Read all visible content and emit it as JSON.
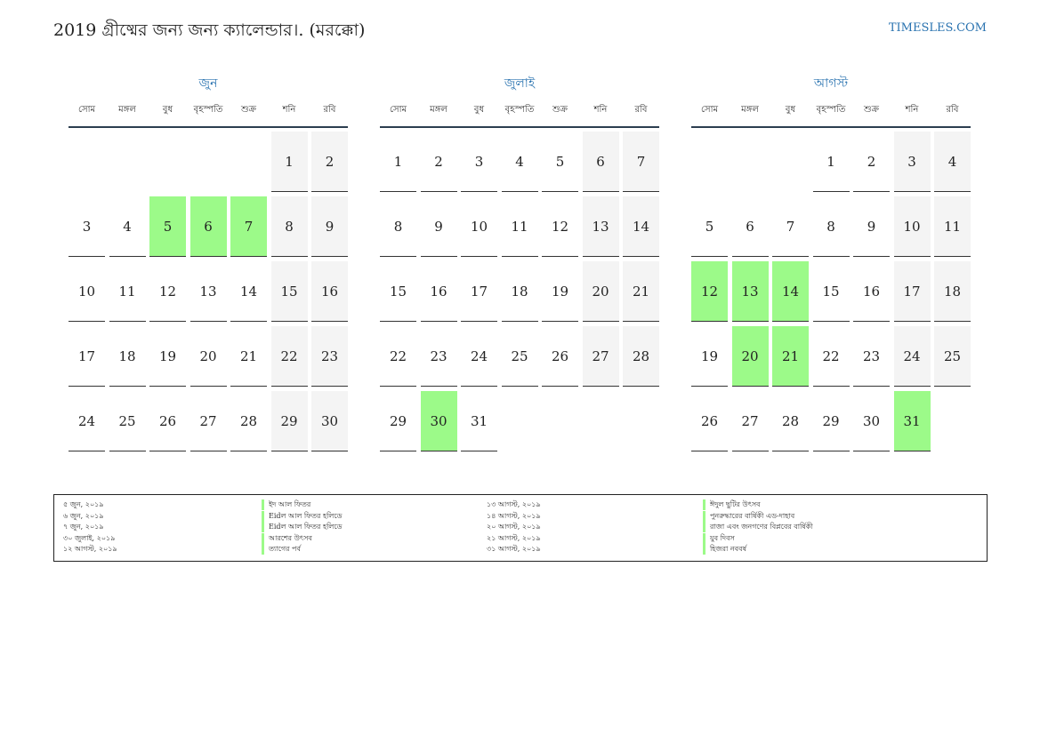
{
  "header": {
    "title": "2019 গ্রীষ্মের জন্য জন্য ক্যালেন্ডার।. (মরক্কো)",
    "site": "TIMESLES.COM"
  },
  "weekdays": [
    "সোম",
    "মঙ্গল",
    "বুধ",
    "বৃহস্পতি",
    "শুক্র",
    "শনি",
    "রবি"
  ],
  "colors": {
    "accent": "#2a73b0",
    "holiday": "#9cfa89",
    "weekend": "#f4f4f4"
  },
  "months": [
    {
      "name": "জুন",
      "start_offset": 5,
      "days": 30,
      "holidays": [
        5,
        6,
        7
      ]
    },
    {
      "name": "জুলাই",
      "start_offset": 0,
      "days": 31,
      "holidays": [
        30
      ]
    },
    {
      "name": "আগস্ট",
      "start_offset": 3,
      "days": 31,
      "holidays": [
        12,
        13,
        14,
        20,
        21,
        31
      ]
    }
  ],
  "legend": {
    "left": [
      {
        "date": "৫ জুন, ২০১৯",
        "name": "ইদ আল ফিতর"
      },
      {
        "date": "৬ জুন, ২০১৯",
        "name": "Eidল আল ফিতর হলিডে"
      },
      {
        "date": "৭ জুন, ২০১৯",
        "name": "Eidল আল ফিতর হলিডে"
      },
      {
        "date": "৩০ জুলাই, ২০১৯",
        "name": "আরশের উৎসব"
      },
      {
        "date": "১২ আগস্ট, ২০১৯",
        "name": "ত্যাগের পর্ব"
      }
    ],
    "right": [
      {
        "date": "১৩ আগস্ট, ২০১৯",
        "name": "ঈদুল ছুটির উৎসব"
      },
      {
        "date": "১৪ আগস্ট, ২০১৯",
        "name": "পুনরুদ্ধারের বার্ষিকী এড-দাহাব"
      },
      {
        "date": "২০ আগস্ট, ২০১৯",
        "name": "রাজা এবং জনগণের বিপ্লবের বার্ষিকী"
      },
      {
        "date": "২১ আগস্ট, ২০১৯",
        "name": "যুব দিবস"
      },
      {
        "date": "৩১ আগস্ট, ২০১৯",
        "name": "হিজরা নববর্ষ"
      }
    ]
  }
}
